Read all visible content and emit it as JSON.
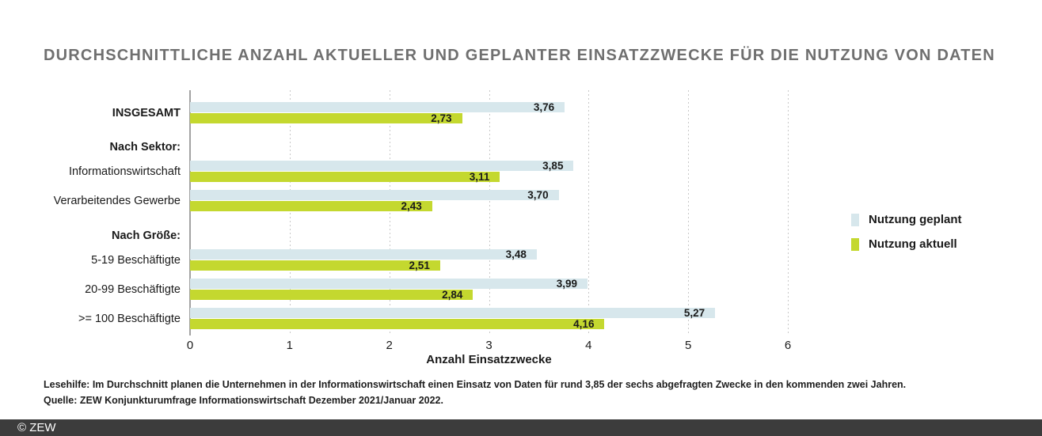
{
  "title": "DURCHSCHNITTLICHE ANZAHL AKTUELLER UND GEPLANTER EINSATZZWECKE FÜR DIE NUTZUNG VON DATEN",
  "chart_data": {
    "type": "bar",
    "orientation": "horizontal",
    "title": "Durchschnittliche Anzahl aktueller und geplanter Einsatzzwecke für die Nutzung von Daten",
    "xlabel": "Anzahl Einsatzzwecke",
    "xlim": [
      0,
      6
    ],
    "xticks": [
      0,
      1,
      2,
      3,
      4,
      5,
      6
    ],
    "grid": "vertical-dashed",
    "value_format": "german-comma-2-decimals",
    "series": [
      {
        "name": "Nutzung geplant",
        "color": "#d7e7ec"
      },
      {
        "name": "Nutzung aktuell",
        "color": "#c4d82f"
      }
    ],
    "groups": [
      {
        "header": "",
        "rows": [
          {
            "label": "INSGESAMT",
            "emphasis": true,
            "geplant": 3.76,
            "aktuell": 2.73
          }
        ]
      },
      {
        "header": "Nach Sektor:",
        "rows": [
          {
            "label": "Informationswirtschaft",
            "emphasis": false,
            "geplant": 3.85,
            "aktuell": 3.11
          },
          {
            "label": "Verarbeitendes Gewerbe",
            "emphasis": false,
            "geplant": 3.7,
            "aktuell": 2.43
          }
        ]
      },
      {
        "header": "Nach Größe:",
        "rows": [
          {
            "label": "5-19 Beschäftigte",
            "emphasis": false,
            "geplant": 3.48,
            "aktuell": 2.51
          },
          {
            "label": "20-99 Beschäftigte",
            "emphasis": false,
            "geplant": 3.99,
            "aktuell": 2.84
          },
          {
            "label": ">= 100 Beschäftigte",
            "emphasis": false,
            "geplant": 5.27,
            "aktuell": 4.16
          }
        ]
      }
    ]
  },
  "legend": {
    "position": "right",
    "items": [
      {
        "label": "Nutzung geplant",
        "color": "#d7e7ec"
      },
      {
        "label": "Nutzung aktuell",
        "color": "#c4d82f"
      }
    ]
  },
  "notes": {
    "lesehilfe": "Lesehilfe: Im Durchschnitt planen die Unternehmen in der Informationswirtschaft einen Einsatz von Daten für rund 3,85 der sechs abgefragten Zwecke in den kommenden zwei Jahren.",
    "quelle": "Quelle: ZEW Konjunkturumfrage Informationswirtschaft Dezember 2021/Januar 2022."
  },
  "footer_bar": {
    "label": "© ZEW",
    "background": "#3c3c3c"
  },
  "colors": {
    "geplant": "#d7e7ec",
    "aktuell": "#c4d82f",
    "title_text": "#6f6f6f",
    "gridline": "#c8c8c8",
    "axis_line": "#a2a2a2",
    "text": "#1a1a1a",
    "footer_bar": "#3c3c3c"
  }
}
